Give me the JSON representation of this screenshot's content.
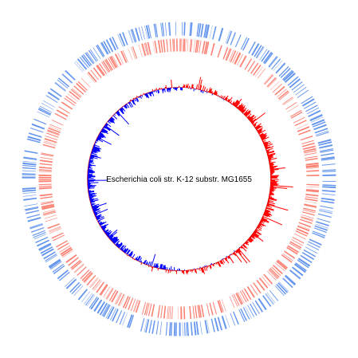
{
  "figure": {
    "organism_label": "Escherichia coli str. K-12 substr. MG1655",
    "background_color": "#ffffff",
    "tracks": [
      {
        "name": "forward-strand-genes",
        "color": "#6495ed",
        "type": "feature-ticks"
      },
      {
        "name": "reverse-strand-genes",
        "color": "#fa8072",
        "type": "feature-ticks"
      },
      {
        "name": "gc-skew",
        "positive_color": "#ff0000",
        "negative_color": "#0000ff",
        "type": "bipolar-line"
      }
    ]
  }
}
